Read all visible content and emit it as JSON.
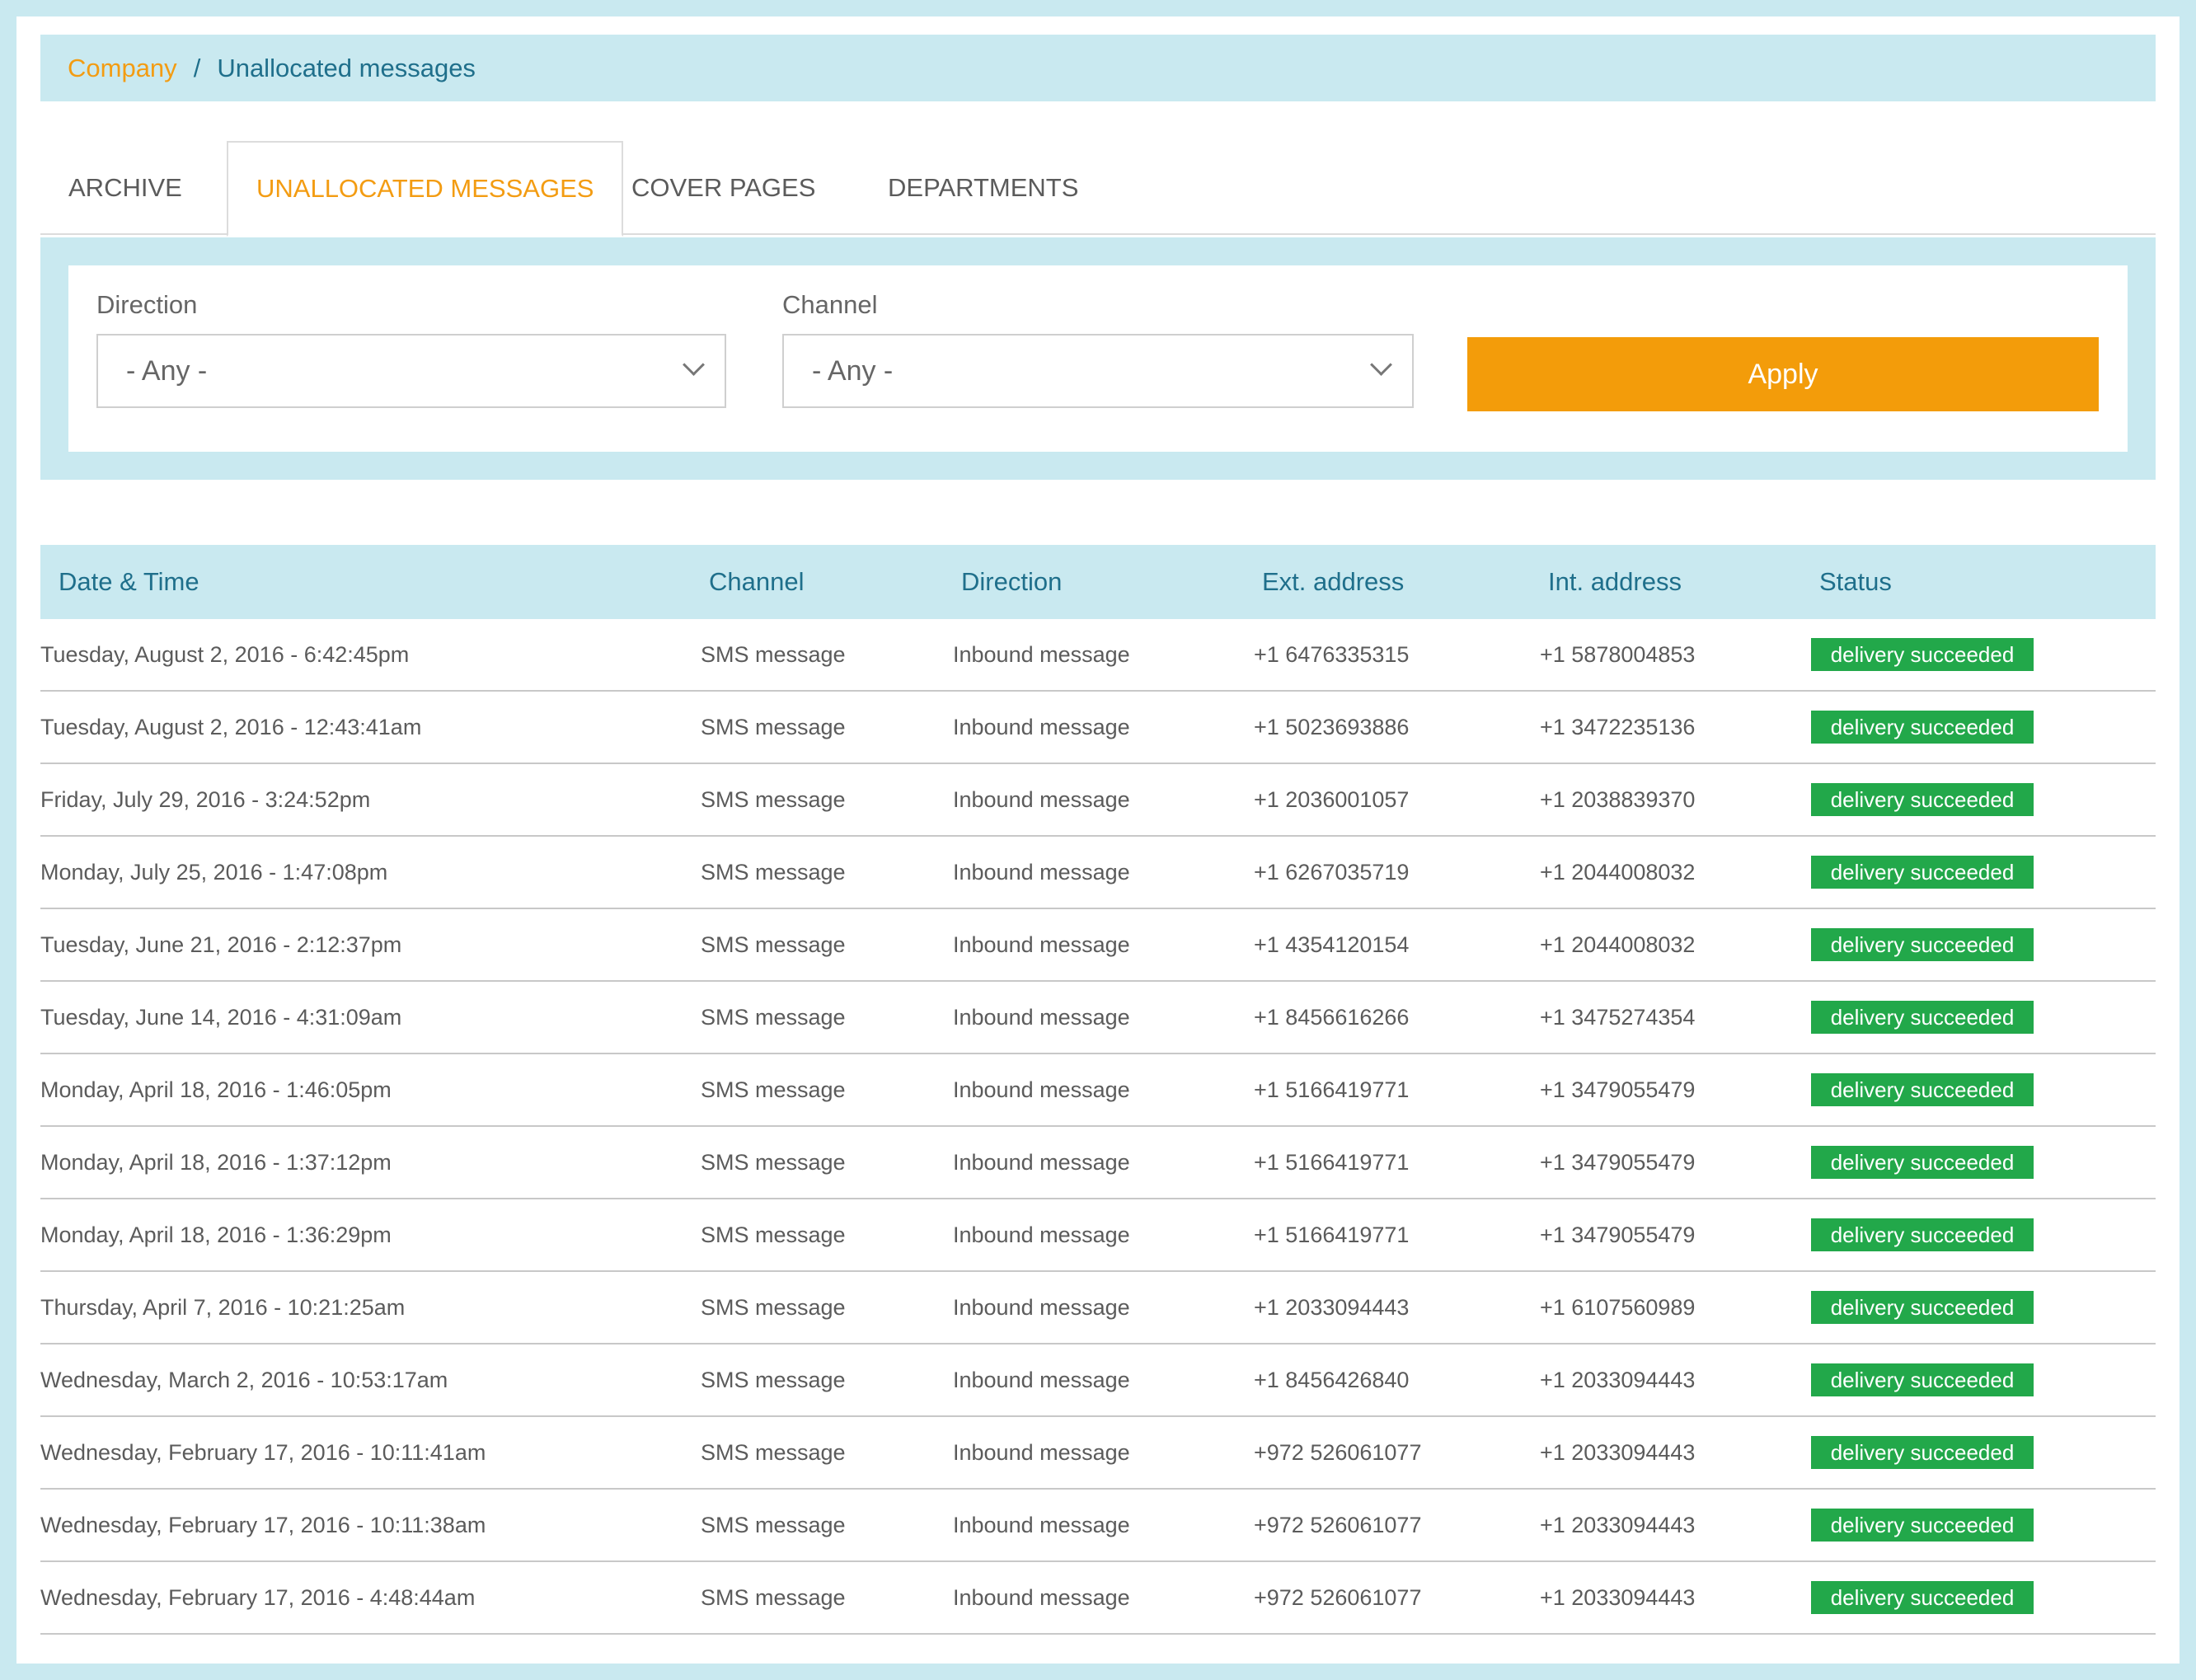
{
  "breadcrumb": {
    "link": "Company",
    "separator": "/",
    "current": "Unallocated messages"
  },
  "tabs": [
    {
      "label": "ARCHIVE"
    },
    {
      "label": "UNALLOCATED MESSAGES"
    },
    {
      "label": "COVER PAGES"
    },
    {
      "label": "DEPARTMENTS"
    }
  ],
  "filters": {
    "direction": {
      "label": "Direction",
      "value": "- Any -"
    },
    "channel": {
      "label": "Channel",
      "value": "- Any -"
    },
    "apply_label": "Apply"
  },
  "table": {
    "headers": [
      "Date & Time",
      "Channel",
      "Direction",
      "Ext. address",
      "Int. address",
      "Status"
    ],
    "rows": [
      [
        "Tuesday, August 2, 2016 - 6:42:45pm",
        "SMS message",
        "Inbound message",
        "+1 6476335315",
        "+1 5878004853",
        "delivery succeeded"
      ],
      [
        "Tuesday, August 2, 2016 - 12:43:41am",
        "SMS message",
        "Inbound message",
        "+1 5023693886",
        "+1 3472235136",
        "delivery succeeded"
      ],
      [
        "Friday, July 29, 2016 - 3:24:52pm",
        "SMS message",
        "Inbound message",
        "+1 2036001057",
        "+1 2038839370",
        "delivery succeeded"
      ],
      [
        "Monday, July 25, 2016 - 1:47:08pm",
        "SMS message",
        "Inbound message",
        "+1 6267035719",
        "+1 2044008032",
        "delivery succeeded"
      ],
      [
        "Tuesday, June 21, 2016 - 2:12:37pm",
        "SMS message",
        "Inbound message",
        "+1 4354120154",
        "+1 2044008032",
        "delivery succeeded"
      ],
      [
        "Tuesday, June 14, 2016 - 4:31:09am",
        "SMS message",
        "Inbound message",
        "+1 8456616266",
        "+1 3475274354",
        "delivery succeeded"
      ],
      [
        "Monday, April 18, 2016 - 1:46:05pm",
        "SMS message",
        "Inbound message",
        "+1 5166419771",
        "+1 3479055479",
        "delivery succeeded"
      ],
      [
        "Monday, April 18, 2016 - 1:37:12pm",
        "SMS message",
        "Inbound message",
        "+1 5166419771",
        "+1 3479055479",
        "delivery succeeded"
      ],
      [
        "Monday, April 18, 2016 - 1:36:29pm",
        "SMS message",
        "Inbound message",
        "+1 5166419771",
        "+1 3479055479",
        "delivery succeeded"
      ],
      [
        "Thursday, April 7, 2016 - 10:21:25am",
        "SMS message",
        "Inbound message",
        "+1 2033094443",
        "+1 6107560989",
        "delivery succeeded"
      ],
      [
        "Wednesday, March 2, 2016 - 10:53:17am",
        "SMS message",
        "Inbound message",
        "+1 8456426840",
        "+1 2033094443",
        "delivery succeeded"
      ],
      [
        "Wednesday, February 17, 2016 - 10:11:41am",
        "SMS message",
        "Inbound message",
        "+972 526061077",
        "+1 2033094443",
        "delivery succeeded"
      ],
      [
        "Wednesday, February 17, 2016 - 10:11:38am",
        "SMS message",
        "Inbound message",
        "+972 526061077",
        "+1 2033094443",
        "delivery succeeded"
      ],
      [
        "Wednesday, February 17, 2016 - 4:48:44am",
        "SMS message",
        "Inbound message",
        "+972 526061077",
        "+1 2033094443",
        "delivery succeeded"
      ]
    ]
  },
  "colors": {
    "accent": "#f39c12",
    "panel": "#c9e9f0",
    "header_text": "#1f6f8b",
    "status_success": "#22a84a"
  }
}
